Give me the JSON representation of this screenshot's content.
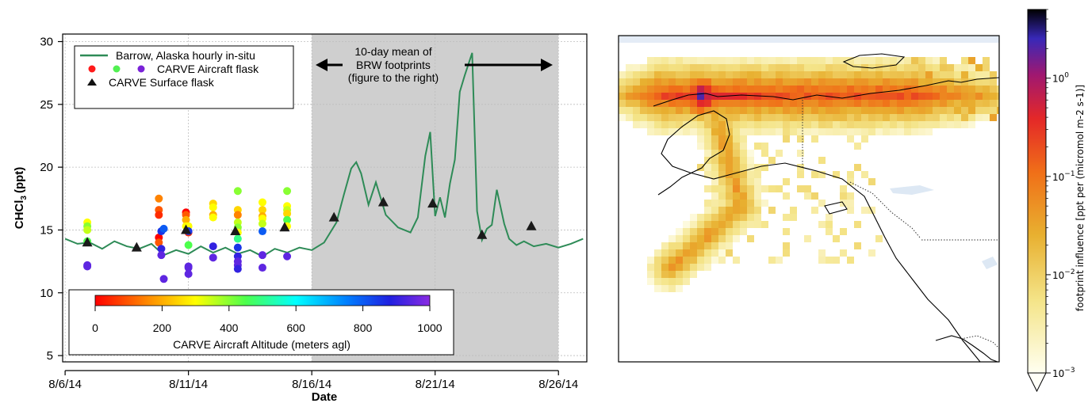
{
  "chart_data": [
    {
      "type": "line",
      "xlabel": "Date",
      "ylabel": "CHCl",
      "ylabel_sub": "3",
      "ylabel_unit": "(ppt)",
      "x_ticks": [
        "8/6/14",
        "8/11/14",
        "8/16/14",
        "8/21/14",
        "8/26/14"
      ],
      "x_tick_days": [
        0,
        5,
        10,
        15,
        20
      ],
      "y_ticks": [
        5,
        10,
        15,
        20,
        25,
        30
      ],
      "xlim": [
        -0.1,
        21.15
      ],
      "ylim": [
        4.5,
        30.6
      ],
      "shaded_span": [
        10.0,
        20.0
      ],
      "grid": true,
      "legend_position": "top-left",
      "legend": {
        "line_label": "Barrow, Alaska hourly in-situ",
        "aircraft_label": "CARVE Aircraft flask",
        "surface_label": "CARVE Surface flask"
      },
      "annotation": {
        "lines": [
          "10-day mean of",
          "BRW footprints",
          "(figure to the right)"
        ]
      },
      "series": [
        {
          "name": "Barrow, Alaska hourly in-situ",
          "color": "#2e8b57",
          "x": [
            0.0,
            0.5,
            1.0,
            1.5,
            2.0,
            2.5,
            3.0,
            3.5,
            4.0,
            4.5,
            5.0,
            5.5,
            6.0,
            6.5,
            7.0,
            7.5,
            8.0,
            8.5,
            9.0,
            9.5,
            10.0,
            10.5,
            11.0,
            11.3,
            11.6,
            11.8,
            12.0,
            12.3,
            12.6,
            13.0,
            13.5,
            14.0,
            14.3,
            14.6,
            14.8,
            15.0,
            15.2,
            15.4,
            15.6,
            15.8,
            16.0,
            16.2,
            16.5,
            16.7,
            16.9,
            17.1,
            17.3,
            17.5,
            17.8,
            18.0,
            18.3,
            18.6,
            19.0,
            19.5,
            20.0,
            20.5,
            21.0
          ],
          "y": [
            14.3,
            13.9,
            14.0,
            13.5,
            14.1,
            13.7,
            13.5,
            13.9,
            13.0,
            13.4,
            13.1,
            13.7,
            13.2,
            13.6,
            13.1,
            13.4,
            12.9,
            13.5,
            13.2,
            13.6,
            13.4,
            14.0,
            15.6,
            17.8,
            19.9,
            20.4,
            19.5,
            17.0,
            18.8,
            16.2,
            15.2,
            14.8,
            16.0,
            20.9,
            22.8,
            16.1,
            17.6,
            16.0,
            18.7,
            20.6,
            26.0,
            27.3,
            29.1,
            16.5,
            14.2,
            15.1,
            15.4,
            18.2,
            15.5,
            14.3,
            13.8,
            14.1,
            13.7,
            13.9,
            13.6,
            13.9,
            14.3
          ]
        },
        {
          "name": "CARVE Aircraft flask",
          "x": [
            0.9,
            0.9,
            0.9,
            0.9,
            0.9,
            0.9,
            3.8,
            3.8,
            3.8,
            3.8,
            3.8,
            3.9,
            3.9,
            3.9,
            4.0,
            4.0,
            4.9,
            4.9,
            4.9,
            4.9,
            5.0,
            5.0,
            5.0,
            5.0,
            5.0,
            5.0,
            5.0,
            6.0,
            6.0,
            6.0,
            6.0,
            6.0,
            6.0,
            7.0,
            7.0,
            7.0,
            7.0,
            7.0,
            7.0,
            7.0,
            7.0,
            7.0,
            7.0,
            7.0,
            7.0,
            8.0,
            8.0,
            8.0,
            8.0,
            8.0,
            8.0,
            8.0,
            8.0,
            9.0,
            9.0,
            9.0,
            9.0,
            9.0,
            9.0,
            9.0
          ],
          "y": [
            15.6,
            15.3,
            15.0,
            14.1,
            12.2,
            12.1,
            17.5,
            16.6,
            16.2,
            14.4,
            14.0,
            13.5,
            14.9,
            13.0,
            11.1,
            15.1,
            16.4,
            16.2,
            15.8,
            15.3,
            14.8,
            13.8,
            15.3,
            12.1,
            11.5,
            12.0,
            14.9,
            17.1,
            16.8,
            16.2,
            16.0,
            13.7,
            12.8,
            18.1,
            16.6,
            16.2,
            15.6,
            15.2,
            14.8,
            14.3,
            13.6,
            12.9,
            12.5,
            12.2,
            11.9,
            17.2,
            16.6,
            16.1,
            15.9,
            15.5,
            14.9,
            13.0,
            12.0,
            18.1,
            16.9,
            16.6,
            16.3,
            15.8,
            15.3,
            12.9
          ],
          "altitude_m": [
            300,
            400,
            350,
            450,
            950,
            950,
            150,
            100,
            50,
            0,
            100,
            900,
            850,
            950,
            950,
            800,
            0,
            100,
            200,
            300,
            50,
            450,
            300,
            950,
            950,
            950,
            850,
            250,
            300,
            200,
            300,
            900,
            950,
            400,
            250,
            150,
            350,
            400,
            300,
            500,
            850,
            900,
            950,
            950,
            900,
            300,
            250,
            200,
            300,
            350,
            800,
            950,
            950,
            400,
            300,
            350,
            250,
            450,
            300,
            950
          ]
        },
        {
          "name": "CARVE Surface flask",
          "x": [
            0.9,
            2.9,
            4.9,
            6.9,
            8.9,
            10.9,
            12.9,
            14.9,
            16.9,
            18.9
          ],
          "y": [
            14.0,
            13.6,
            15.0,
            14.9,
            15.2,
            16.0,
            17.2,
            17.1,
            14.6,
            15.3
          ]
        }
      ],
      "colorbar": {
        "label": "CARVE Aircraft Altitude (meters agl)",
        "range": [
          0,
          1000
        ],
        "ticks": [
          "0",
          "200",
          "400",
          "600",
          "800",
          "1000"
        ],
        "tick_values": [
          0,
          200,
          400,
          600,
          800,
          1000
        ]
      }
    },
    {
      "type": "heatmap",
      "title": "",
      "colorbar": {
        "label": "footprint influence [ppt per (micromol m-2 s-1)]",
        "scale": "log",
        "range": [
          0.001,
          5
        ],
        "ticks": [
          {
            "base": "10",
            "exp": "0",
            "value": 1
          },
          {
            "base": "10",
            "exp": "−1",
            "value": 0.1
          },
          {
            "base": "10",
            "exp": "−2",
            "value": 0.01
          },
          {
            "base": "10",
            "exp": "−3",
            "value": 0.001
          }
        ]
      }
    }
  ]
}
